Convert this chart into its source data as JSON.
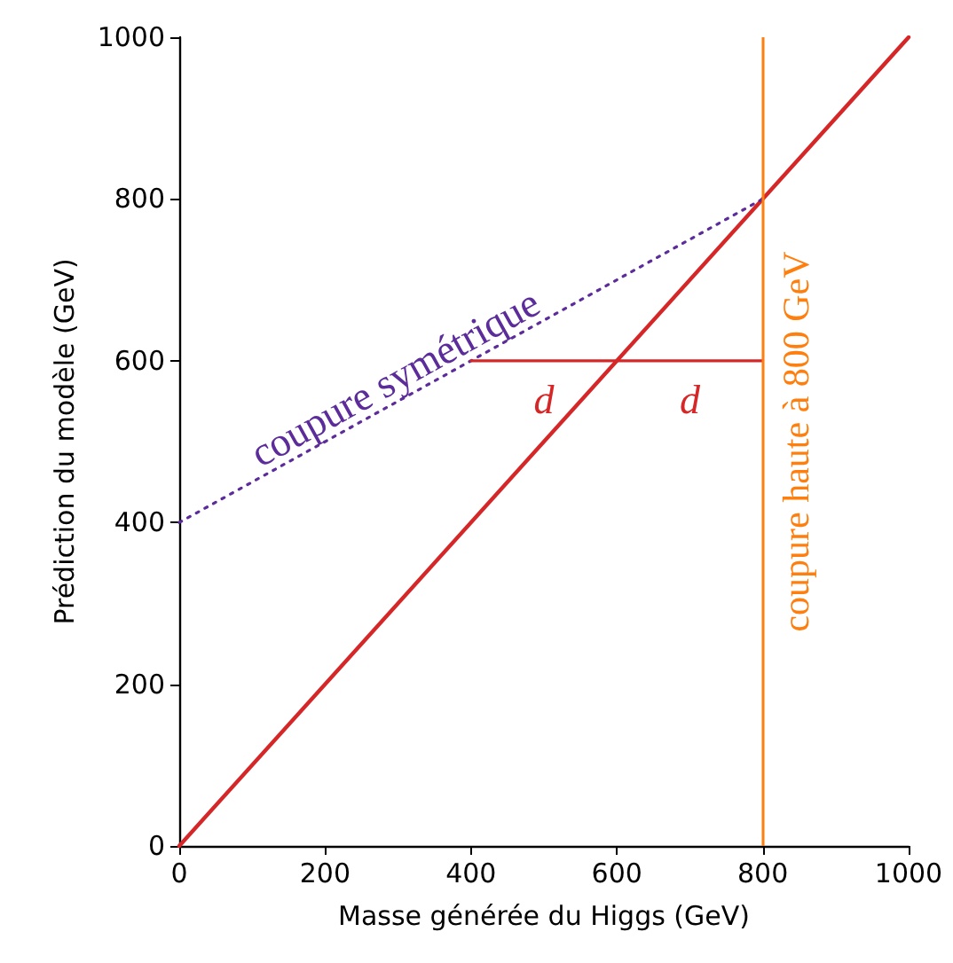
{
  "chart_data": {
    "type": "line",
    "xlabel": "Masse générée du Higgs (GeV)",
    "ylabel": "Prédiction du modèle (GeV)",
    "xlim": [
      0,
      1000
    ],
    "ylim": [
      0,
      1000
    ],
    "xticks": [
      0,
      200,
      400,
      600,
      800,
      1000
    ],
    "yticks": [
      0,
      200,
      400,
      600,
      800,
      1000
    ],
    "grid": false,
    "marker": "none",
    "series": [
      {
        "color": "#d62728",
        "x": [
          0,
          1000
        ],
        "values": [
          0,
          1000
        ],
        "line_style": "solid"
      },
      {
        "color": "#5b2c9a",
        "x": [
          0,
          800
        ],
        "values": [
          400,
          800
        ],
        "line_style": "dotted"
      },
      {
        "color": "#d62728",
        "x": [
          400,
          600,
          800
        ],
        "values": [
          600,
          600,
          600
        ],
        "line_style": "solid"
      }
    ],
    "ref_lines": [
      {
        "axis": "x",
        "value": 800,
        "label": "coupure haute à 800 GeV",
        "color": "#ff7f0e"
      }
    ],
    "annotations": [
      "coupure symétrique",
      "d",
      "d"
    ]
  }
}
